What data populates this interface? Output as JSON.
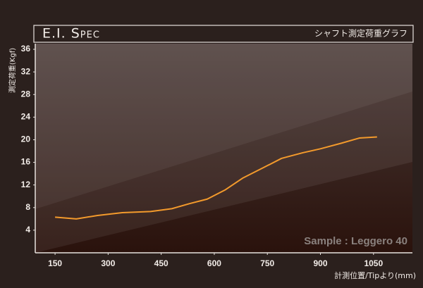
{
  "chart_data": {
    "type": "line",
    "title": "E.I. Spec",
    "subtitle": "シャフト測定荷重グラフ",
    "y_label": "測定荷重(Kgf)",
    "x_label": "計測位置/Tipより(mm)",
    "annotation": "Sample : Leggero 40",
    "x": [
      150,
      210,
      270,
      340,
      420,
      480,
      530,
      580,
      630,
      680,
      740,
      790,
      850,
      900,
      960,
      1010,
      1060
    ],
    "series": [
      {
        "color": "#f39a2c",
        "values": [
          6.3,
          6.0,
          6.6,
          7.1,
          7.3,
          7.8,
          8.7,
          9.5,
          11.1,
          13.2,
          15.1,
          16.7,
          17.7,
          18.4,
          19.4,
          20.3,
          20.5
        ]
      }
    ],
    "xlim": [
      94,
      1160
    ],
    "ylim": [
      0,
      37
    ],
    "xticks": [
      150,
      300,
      450,
      600,
      750,
      900,
      1050
    ],
    "yticks": [
      4,
      8,
      12,
      16,
      20,
      24,
      28,
      32,
      36
    ]
  }
}
